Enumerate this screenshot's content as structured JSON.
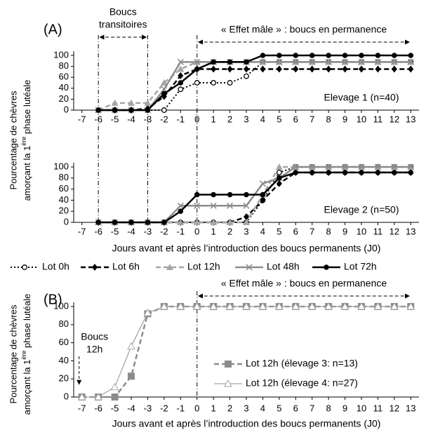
{
  "chart_data": [
    {
      "type": "line",
      "panel_label": "(A)",
      "transient_label": [
        "Boucs",
        "transitoires"
      ],
      "transient_span": [
        -6,
        -3
      ],
      "effect_label": "« Effet mâle » : boucs en permanence",
      "effect_span": [
        0,
        13
      ],
      "vlines": [
        -6,
        -3,
        0
      ],
      "y_label": {
        "line1": "Pourcentage de chèvres",
        "line2_start": "amorçant la 1",
        "sup": "ère",
        "line2_end": " phase lutéale"
      },
      "subtitle": "Elevage 1 (n=40)",
      "legend": "below",
      "x": [
        -6,
        -5,
        -4,
        -3,
        -2,
        -1,
        0,
        1,
        2,
        3,
        4,
        5,
        6,
        7,
        8,
        9,
        10,
        11,
        12,
        13
      ],
      "xlim": [
        -7.5,
        13.5
      ],
      "xticks": [
        -7,
        -6,
        -5,
        -4,
        -3,
        -2,
        -1,
        0,
        1,
        2,
        3,
        4,
        5,
        6,
        7,
        8,
        9,
        10,
        11,
        12,
        13
      ],
      "ylim": [
        0,
        100
      ],
      "yticks": [
        0,
        20,
        40,
        60,
        80,
        100
      ],
      "series": [
        {
          "name": "Lot 0h",
          "color": "#000000",
          "dash": "dot",
          "marker": "circle-open",
          "line_width": 2,
          "values": [
            0,
            0,
            0,
            0,
            0,
            38,
            50,
            50,
            50,
            62,
            88,
            88,
            88,
            88,
            88,
            88,
            88,
            88,
            88,
            88
          ]
        },
        {
          "name": "Lot 6h",
          "color": "#000000",
          "dash": "dash",
          "marker": "diamond",
          "line_width": 2.5,
          "values": [
            0,
            0,
            0,
            3,
            25,
            63,
            75,
            75,
            75,
            75,
            75,
            75,
            75,
            75,
            75,
            75,
            75,
            75,
            75,
            75
          ]
        },
        {
          "name": "Lot 12h",
          "color": "#a6a6a6",
          "dash": "dash",
          "marker": "triangle",
          "line_width": 2.5,
          "values": [
            0,
            13,
            13,
            13,
            50,
            75,
            88,
            88,
            88,
            88,
            88,
            88,
            88,
            88,
            88,
            88,
            88,
            88,
            88,
            88
          ]
        },
        {
          "name": "Lot 48h",
          "color": "#8c8c8c",
          "dash": "solid",
          "marker": "x",
          "line_width": 2.5,
          "values": [
            0,
            0,
            0,
            0,
            38,
            88,
            88,
            88,
            88,
            88,
            88,
            88,
            88,
            88,
            88,
            88,
            88,
            88,
            88,
            88
          ]
        },
        {
          "name": "Lot 72h",
          "color": "#000000",
          "dash": "solid",
          "marker": "circle",
          "line_width": 2.5,
          "values": [
            0,
            0,
            0,
            0,
            30,
            50,
            75,
            88,
            88,
            88,
            100,
            100,
            100,
            100,
            100,
            100,
            100,
            100,
            100,
            100
          ]
        }
      ]
    },
    {
      "type": "line",
      "subtitle": "Elevage 2 (n=50)",
      "x_label": "Jours avant et après l’introduction des boucs permanents (J0)",
      "x": [
        -6,
        -5,
        -4,
        -3,
        -2,
        -1,
        0,
        1,
        2,
        3,
        4,
        5,
        6,
        7,
        8,
        9,
        10,
        11,
        12,
        13
      ],
      "xlim": [
        -7.5,
        13.5
      ],
      "xticks": [
        -7,
        -6,
        -5,
        -4,
        -3,
        -2,
        -1,
        0,
        1,
        2,
        3,
        4,
        5,
        6,
        7,
        8,
        9,
        10,
        11,
        12,
        13
      ],
      "ylim": [
        0,
        100
      ],
      "yticks": [
        0,
        20,
        40,
        60,
        80,
        100
      ],
      "series": [
        {
          "color": "#000000",
          "dash": "dot",
          "marker": "circle-open",
          "line_width": 2,
          "values": [
            0,
            0,
            0,
            0,
            0,
            0,
            0,
            0,
            0,
            0,
            40,
            90,
            100,
            100,
            100,
            100,
            100,
            100,
            100,
            100
          ]
        },
        {
          "color": "#000000",
          "dash": "dash",
          "marker": "diamond",
          "line_width": 2.5,
          "values": [
            0,
            0,
            0,
            0,
            0,
            0,
            0,
            0,
            0,
            10,
            40,
            70,
            90,
            90,
            90,
            90,
            90,
            90,
            90,
            90
          ]
        },
        {
          "color": "#a6a6a6",
          "dash": "dash",
          "marker": "triangle",
          "line_width": 2.5,
          "values": [
            0,
            0,
            0,
            0,
            0,
            0,
            0,
            0,
            0,
            0,
            50,
            100,
            100,
            100,
            100,
            100,
            100,
            100,
            100,
            100
          ]
        },
        {
          "color": "#8c8c8c",
          "dash": "solid",
          "marker": "x",
          "line_width": 2.5,
          "values": [
            0,
            0,
            0,
            0,
            0,
            30,
            30,
            30,
            30,
            30,
            70,
            80,
            100,
            100,
            100,
            100,
            100,
            100,
            100,
            100
          ]
        },
        {
          "color": "#000000",
          "dash": "solid",
          "marker": "circle",
          "line_width": 2.5,
          "values": [
            0,
            0,
            0,
            0,
            0,
            20,
            50,
            50,
            50,
            50,
            50,
            80,
            90,
            90,
            90,
            90,
            90,
            90,
            90,
            90
          ]
        }
      ]
    },
    {
      "type": "line",
      "panel_label": "(B)",
      "effect_label": "« Effet mâle » : boucs en permanence",
      "effect_span": [
        0,
        13
      ],
      "vlines": [
        0
      ],
      "pulse_label": [
        "Boucs",
        "12h"
      ],
      "pulse_x": -7,
      "y_label": {
        "line1": "Pourcentage de chèvres",
        "line2_start": "amorçant la 1",
        "sup": "ère",
        "line2_end": " phase lutéale"
      },
      "x_label": "Jours avant et après l’introduction des boucs permanents (J0)",
      "legend": "right",
      "x": [
        -7,
        -6,
        -5,
        -4,
        -3,
        -2,
        -1,
        0,
        1,
        2,
        3,
        4,
        5,
        6,
        7,
        8,
        9,
        10,
        11,
        12,
        13
      ],
      "xlim": [
        -7.5,
        13.5
      ],
      "xticks": [
        -7,
        -6,
        -5,
        -4,
        -3,
        -2,
        -1,
        0,
        1,
        2,
        3,
        4,
        5,
        6,
        7,
        8,
        9,
        10,
        11,
        12,
        13
      ],
      "ylim": [
        0,
        100
      ],
      "yticks": [
        0,
        20,
        40,
        60,
        80,
        100
      ],
      "series": [
        {
          "name": "Lot 12h (élevage 3: n=13)",
          "color": "#8c8c8c",
          "dash": "dash",
          "marker": "square",
          "line_width": 2.5,
          "values": [
            0,
            0,
            0,
            23,
            92,
            100,
            100,
            100,
            100,
            100,
            100,
            100,
            100,
            100,
            100,
            100,
            100,
            100,
            100,
            100,
            100
          ]
        },
        {
          "name": "Lot 12h (élevage 4: n=27)",
          "color": "#a6a6a6",
          "dash": "solid",
          "marker": "triangle-open",
          "line_width": 1.3,
          "values": [
            0,
            0,
            11,
            56,
            93,
            100,
            100,
            100,
            100,
            100,
            100,
            100,
            100,
            100,
            100,
            100,
            100,
            100,
            100,
            100,
            100
          ]
        }
      ]
    }
  ]
}
